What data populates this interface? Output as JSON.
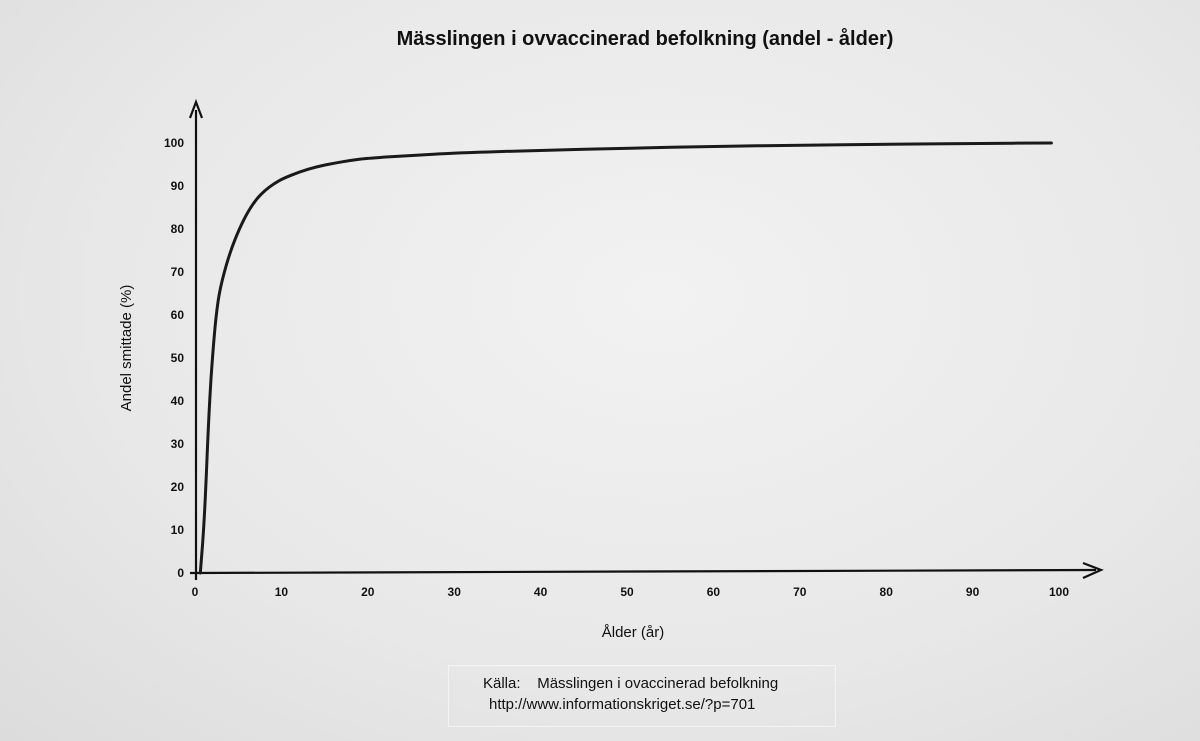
{
  "chart_data": {
    "type": "line",
    "title": "Mässlingen i ovvaccinerad befolkning (andel - ålder)",
    "xlabel": "Ålder (år)",
    "ylabel": "Andel smittade (%)",
    "xlim": [
      0,
      100
    ],
    "ylim": [
      0,
      100
    ],
    "x_ticks": [
      "0",
      "10",
      "20",
      "30",
      "40",
      "50",
      "60",
      "70",
      "80",
      "90",
      "100"
    ],
    "y_ticks": [
      "0",
      "10",
      "20",
      "30",
      "40",
      "50",
      "60",
      "70",
      "80",
      "90",
      "100"
    ],
    "grid": false,
    "series": [
      {
        "x": [
          0.5,
          1,
          1.5,
          2,
          2.5,
          3,
          4,
          5,
          6,
          7,
          8,
          9,
          10,
          12,
          14,
          16,
          18,
          20,
          25,
          30,
          40,
          50,
          60,
          70,
          80,
          90,
          99
        ],
        "y": [
          0,
          13,
          38,
          53,
          63,
          68,
          75,
          80,
          84,
          87,
          89,
          90.5,
          91.7,
          93.3,
          94.5,
          95.3,
          96,
          96.5,
          97.1,
          97.7,
          98.3,
          98.8,
          99.2,
          99.5,
          99.7,
          99.9,
          100
        ]
      }
    ]
  },
  "source": {
    "label": "Källa:",
    "text": "Mässlingen i ovaccinerad befolkning",
    "url": "http://www.informationskriget.se/?p=701"
  }
}
